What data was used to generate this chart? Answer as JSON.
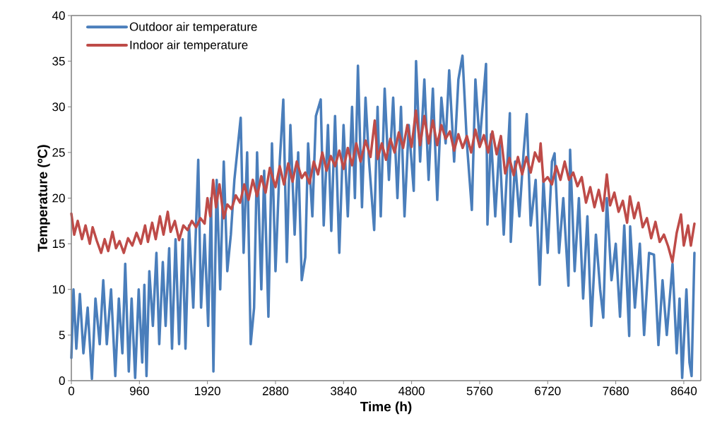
{
  "chart_data": {
    "type": "line",
    "xlabel": "Time (h)",
    "ylabel": "Temperature (ºC)",
    "xlim": [
      0,
      8880
    ],
    "ylim": [
      0,
      40
    ],
    "xticks": [
      0,
      960,
      1920,
      2880,
      3840,
      4800,
      5760,
      6720,
      7680,
      8640
    ],
    "yticks": [
      0,
      5,
      10,
      15,
      20,
      25,
      30,
      35,
      40
    ],
    "grid": false,
    "legend": "top left",
    "line_style": "solid",
    "series": [
      {
        "name": "Outdoor air temperature",
        "color": "#4a7ebb",
        "x": [
          0,
          30,
          70,
          120,
          170,
          230,
          290,
          340,
          400,
          450,
          500,
          560,
          620,
          670,
          720,
          760,
          810,
          850,
          900,
          950,
          1000,
          1030,
          1060,
          1100,
          1150,
          1200,
          1240,
          1290,
          1330,
          1380,
          1420,
          1470,
          1520,
          1570,
          1610,
          1660,
          1720,
          1790,
          1830,
          1880,
          1930,
          1970,
          2004,
          2050,
          2100,
          2150,
          2200,
          2250,
          2300,
          2389,
          2430,
          2480,
          2530,
          2578,
          2620,
          2680,
          2720,
          2780,
          2830,
          2880,
          2940,
          2990,
          3040,
          3090,
          3150,
          3200,
          3250,
          3300,
          3340,
          3400,
          3450,
          3518,
          3560,
          3620,
          3667,
          3720,
          3780,
          3840,
          3900,
          3960,
          4000,
          4043,
          4100,
          4150,
          4200,
          4272,
          4320,
          4365,
          4420,
          4480,
          4540,
          4600,
          4650,
          4700,
          4760,
          4830,
          4863,
          4920,
          4980,
          5040,
          5100,
          5162,
          5220,
          5280,
          5330,
          5400,
          5460,
          5518,
          5580,
          5650,
          5700,
          5760,
          5850,
          5870,
          5920,
          5980,
          6040,
          6100,
          6186,
          6199,
          6260,
          6320,
          6380,
          6425,
          6480,
          6550,
          6607,
          6660,
          6720,
          6780,
          6817,
          6880,
          6940,
          7013,
          7036,
          7100,
          7160,
          7220,
          7280,
          7335,
          7400,
          7460,
          7504,
          7554,
          7620,
          7680,
          7740,
          7800,
          7870,
          7883,
          7950,
          8020,
          8080,
          8150,
          8219,
          8282,
          8340,
          8400,
          8481,
          8540,
          8580,
          8617,
          8677,
          8720,
          8750,
          8790
        ],
        "values": [
          2.5,
          10,
          3.5,
          9.5,
          3,
          8,
          0.2,
          9,
          4,
          11,
          4,
          10,
          0.5,
          9,
          3,
          12.8,
          1,
          9,
          0.3,
          10,
          2,
          10.5,
          0.5,
          12,
          6,
          14,
          4,
          13,
          6,
          14.5,
          3.5,
          15.5,
          4,
          15.5,
          3.5,
          17,
          8,
          24.2,
          8,
          16,
          6,
          20,
          1,
          22,
          10,
          24,
          12,
          16,
          22,
          28.8,
          14,
          25,
          4,
          8,
          25,
          10,
          23,
          7,
          26,
          12,
          24,
          30.8,
          13,
          28,
          16,
          25,
          11,
          13.5,
          26,
          18,
          29,
          30.8,
          17,
          28,
          16.4,
          29,
          14,
          28,
          18,
          30,
          20,
          34.5,
          19,
          31,
          24,
          16.5,
          30,
          18,
          32,
          22,
          31,
          20,
          30,
          18,
          28,
          20.8,
          35,
          24,
          33,
          22,
          32,
          19.8,
          31,
          26,
          34,
          24,
          33,
          35.6,
          26,
          18.7,
          33,
          26,
          34.7,
          17.1,
          27,
          18,
          26,
          16,
          29.3,
          15.2,
          24,
          18,
          25,
          29.2,
          17,
          22,
          10.5,
          22,
          14,
          24,
          24.9,
          14,
          20,
          10.4,
          25.3,
          12,
          20,
          9,
          18,
          6,
          16,
          10,
          6.9,
          20,
          11,
          15,
          7,
          17,
          4.9,
          16.9,
          8,
          15,
          5,
          14,
          13.8,
          3.9,
          11,
          5,
          12.8,
          3,
          9,
          0.3,
          10,
          2,
          0.5,
          14
        ]
      },
      {
        "name": "Indoor air temperature",
        "color": "#be4b48",
        "x": [
          0,
          40,
          90,
          150,
          200,
          260,
          300,
          360,
          420,
          470,
          520,
          580,
          630,
          680,
          740,
          800,
          860,
          920,
          980,
          1040,
          1080,
          1140,
          1190,
          1250,
          1300,
          1360,
          1400,
          1460,
          1520,
          1580,
          1640,
          1700,
          1760,
          1820,
          1880,
          1920,
          1960,
          2000,
          2040,
          2090,
          2150,
          2200,
          2260,
          2320,
          2380,
          2440,
          2500,
          2560,
          2620,
          2680,
          2740,
          2800,
          2880,
          2940,
          3000,
          3060,
          3120,
          3180,
          3250,
          3300,
          3360,
          3420,
          3480,
          3540,
          3600,
          3660,
          3720,
          3780,
          3840,
          3900,
          3960,
          4020,
          4080,
          4150,
          4220,
          4280,
          4320,
          4380,
          4440,
          4500,
          4560,
          4620,
          4680,
          4740,
          4800,
          4860,
          4920,
          4980,
          5040,
          5100,
          5160,
          5220,
          5280,
          5340,
          5400,
          5460,
          5520,
          5580,
          5640,
          5700,
          5760,
          5820,
          5880,
          5940,
          6000,
          6060,
          6120,
          6180,
          6240,
          6300,
          6360,
          6420,
          6480,
          6540,
          6600,
          6620,
          6660,
          6720,
          6780,
          6840,
          6900,
          6960,
          7020,
          7080,
          7140,
          7200,
          7260,
          7320,
          7380,
          7440,
          7500,
          7554,
          7600,
          7660,
          7720,
          7780,
          7840,
          7880,
          7940,
          8000,
          8060,
          8120,
          8180,
          8240,
          8300,
          8360,
          8420,
          8480,
          8540,
          8600,
          8640,
          8700,
          8740,
          8790
        ],
        "values": [
          18.3,
          16,
          17.5,
          15.5,
          17,
          15,
          16.8,
          15.3,
          14,
          15.5,
          14.2,
          16.3,
          14.5,
          15.3,
          14,
          15.6,
          14.8,
          16.2,
          15,
          17,
          15.2,
          17.3,
          15.5,
          18,
          16,
          18.5,
          16.3,
          17.5,
          15.4,
          17,
          16.5,
          17.5,
          16.8,
          17.8,
          17.2,
          20,
          18,
          22,
          19,
          21.5,
          17.8,
          19.3,
          18.8,
          20.3,
          19.5,
          21.5,
          19.8,
          22,
          20.2,
          22.4,
          20.6,
          23.3,
          21.2,
          23.5,
          21.5,
          23.8,
          21.8,
          24,
          22.2,
          22.8,
          21.6,
          24,
          22.6,
          25,
          23,
          24.6,
          23.5,
          25.2,
          23.2,
          25.5,
          23.6,
          26,
          24,
          26.3,
          24.5,
          28.5,
          24.3,
          26,
          24.2,
          26.5,
          25,
          27.2,
          25.5,
          28,
          25.6,
          29.6,
          25.8,
          29,
          26,
          28.5,
          25.8,
          28,
          26.5,
          27.3,
          25.2,
          27,
          25.5,
          26.8,
          25,
          27.5,
          25.6,
          26.9,
          25,
          27.3,
          24.8,
          26.8,
          22.7,
          24.4,
          22.5,
          24.5,
          22.6,
          24.5,
          22.8,
          25,
          24,
          26,
          21.8,
          22.3,
          21.5,
          23.5,
          22,
          24,
          22,
          22.8,
          21.3,
          22.3,
          19.5,
          21.2,
          19,
          20.9,
          18.6,
          22.6,
          19.2,
          20.6,
          18.5,
          19.7,
          17.3,
          20.2,
          17.8,
          19.5,
          16.8,
          17.8,
          15.6,
          17.4,
          15.2,
          16,
          14.7,
          13,
          16.2,
          18.2,
          14.8,
          17,
          14.8,
          17.2
        ]
      }
    ]
  }
}
